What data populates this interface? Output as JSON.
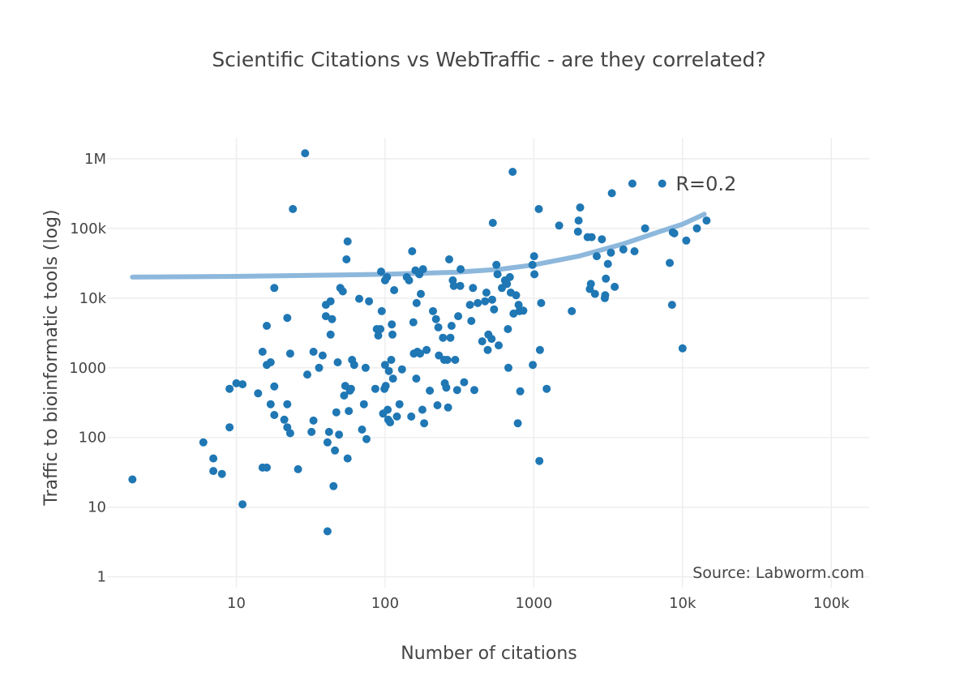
{
  "chart_data": {
    "type": "scatter",
    "title": "Scientific Citations vs WebTraffic - are they correlated?",
    "xlabel": "Number of citations",
    "ylabel": "Traffic to bioinformatic tools (log)",
    "xscale": "log",
    "yscale": "log",
    "xlim": [
      1.35,
      180000
    ],
    "ylim": [
      0.7,
      2000000
    ],
    "grid": true,
    "x_ticks": [
      {
        "value": 10,
        "label": "10"
      },
      {
        "value": 100,
        "label": "100"
      },
      {
        "value": 1000,
        "label": "1000"
      },
      {
        "value": 10000,
        "label": "10k"
      },
      {
        "value": 100000,
        "label": "100k"
      }
    ],
    "y_ticks": [
      {
        "value": 1,
        "label": "1"
      },
      {
        "value": 10,
        "label": "10"
      },
      {
        "value": 100,
        "label": "100"
      },
      {
        "value": 1000,
        "label": "1000"
      },
      {
        "value": 10000,
        "label": "10k"
      },
      {
        "value": 100000,
        "label": "100k"
      },
      {
        "value": 1000000,
        "label": "1M"
      }
    ],
    "colors": {
      "points": "#1f77b4",
      "trend": "#8db8dc"
    },
    "annotation": {
      "text": "R=0.2",
      "x": 9000,
      "y": 350000
    },
    "source_note": "Source: Labworm.com",
    "trend_line": [
      [
        2,
        20000
      ],
      [
        10,
        20500
      ],
      [
        50,
        21500
      ],
      [
        100,
        22000
      ],
      [
        300,
        23500
      ],
      [
        600,
        26000
      ],
      [
        1000,
        30000
      ],
      [
        2000,
        40000
      ],
      [
        4000,
        60000
      ],
      [
        7000,
        90000
      ],
      [
        10000,
        115000
      ],
      [
        14000,
        160000
      ]
    ],
    "points": [
      [
        2,
        25
      ],
      [
        6,
        85
      ],
      [
        7,
        50
      ],
      [
        7,
        33
      ],
      [
        8,
        30
      ],
      [
        9,
        500
      ],
      [
        9,
        140
      ],
      [
        10,
        600
      ],
      [
        11,
        580
      ],
      [
        11,
        11
      ],
      [
        14,
        430
      ],
      [
        15,
        1700
      ],
      [
        15,
        37
      ],
      [
        16,
        37
      ],
      [
        16,
        4000
      ],
      [
        16,
        1100
      ],
      [
        17,
        1200
      ],
      [
        17,
        300
      ],
      [
        18,
        14000
      ],
      [
        18,
        210
      ],
      [
        18,
        540
      ],
      [
        21,
        180
      ],
      [
        22,
        5200
      ],
      [
        22,
        300
      ],
      [
        22,
        140
      ],
      [
        23,
        1600
      ],
      [
        23,
        115
      ],
      [
        24,
        190000
      ],
      [
        26,
        35
      ],
      [
        29,
        1200000
      ],
      [
        30,
        800
      ],
      [
        32,
        120
      ],
      [
        33,
        175
      ],
      [
        33,
        1700
      ],
      [
        36,
        1000
      ],
      [
        38,
        1500
      ],
      [
        40,
        8000
      ],
      [
        40,
        5500
      ],
      [
        41,
        4.5
      ],
      [
        41,
        85
      ],
      [
        42,
        120
      ],
      [
        43,
        9000
      ],
      [
        43,
        3000
      ],
      [
        44,
        5000
      ],
      [
        45,
        20
      ],
      [
        46,
        65
      ],
      [
        47,
        230
      ],
      [
        48,
        1200
      ],
      [
        49,
        110
      ],
      [
        50,
        14000
      ],
      [
        52,
        12500
      ],
      [
        53,
        400
      ],
      [
        54,
        550
      ],
      [
        55,
        36000
      ],
      [
        56,
        65000
      ],
      [
        56,
        50
      ],
      [
        57,
        240
      ],
      [
        58,
        470
      ],
      [
        59,
        500
      ],
      [
        60,
        1300
      ],
      [
        62,
        1100
      ],
      [
        67,
        9800
      ],
      [
        70,
        130
      ],
      [
        72,
        300
      ],
      [
        74,
        1000
      ],
      [
        75,
        95
      ],
      [
        78,
        9000
      ],
      [
        86,
        500
      ],
      [
        88,
        3600
      ],
      [
        90,
        2900
      ],
      [
        93,
        3600
      ],
      [
        94,
        24000
      ],
      [
        95,
        6500
      ],
      [
        97,
        220
      ],
      [
        99,
        500
      ],
      [
        100,
        1100
      ],
      [
        100,
        18000
      ],
      [
        101,
        550
      ],
      [
        103,
        20000
      ],
      [
        104,
        250
      ],
      [
        105,
        180
      ],
      [
        106,
        900
      ],
      [
        108,
        165
      ],
      [
        110,
        1300
      ],
      [
        111,
        4200
      ],
      [
        112,
        3000
      ],
      [
        113,
        700
      ],
      [
        115,
        13000
      ],
      [
        120,
        200
      ],
      [
        125,
        300
      ],
      [
        130,
        950
      ],
      [
        140,
        20000
      ],
      [
        145,
        18000
      ],
      [
        150,
        200
      ],
      [
        152,
        47000
      ],
      [
        155,
        4500
      ],
      [
        156,
        1600
      ],
      [
        160,
        25000
      ],
      [
        162,
        700
      ],
      [
        163,
        8500
      ],
      [
        165,
        1700
      ],
      [
        170,
        22000
      ],
      [
        172,
        1600
      ],
      [
        174,
        11500
      ],
      [
        178,
        250
      ],
      [
        180,
        26000
      ],
      [
        183,
        160
      ],
      [
        190,
        1800
      ],
      [
        200,
        470
      ],
      [
        210,
        6500
      ],
      [
        220,
        5000
      ],
      [
        225,
        290
      ],
      [
        228,
        3800
      ],
      [
        230,
        1500
      ],
      [
        245,
        2700
      ],
      [
        250,
        1300
      ],
      [
        252,
        600
      ],
      [
        258,
        520
      ],
      [
        262,
        1300
      ],
      [
        265,
        270
      ],
      [
        270,
        36000
      ],
      [
        275,
        2700
      ],
      [
        280,
        4000
      ],
      [
        285,
        18000
      ],
      [
        290,
        15000
      ],
      [
        296,
        1300
      ],
      [
        305,
        480
      ],
      [
        310,
        5500
      ],
      [
        320,
        15000
      ],
      [
        322,
        26000
      ],
      [
        340,
        620
      ],
      [
        372,
        8000
      ],
      [
        380,
        4700
      ],
      [
        390,
        14000
      ],
      [
        398,
        480
      ],
      [
        420,
        8500
      ],
      [
        450,
        2400
      ],
      [
        470,
        9000
      ],
      [
        480,
        12000
      ],
      [
        490,
        1800
      ],
      [
        495,
        3000
      ],
      [
        520,
        2600
      ],
      [
        525,
        9500
      ],
      [
        530,
        120000
      ],
      [
        540,
        6900
      ],
      [
        560,
        30000
      ],
      [
        570,
        22000
      ],
      [
        580,
        2100
      ],
      [
        610,
        14000
      ],
      [
        640,
        18000
      ],
      [
        650,
        17000
      ],
      [
        660,
        16000
      ],
      [
        670,
        3600
      ],
      [
        675,
        1000
      ],
      [
        690,
        20000
      ],
      [
        700,
        12000
      ],
      [
        720,
        650000
      ],
      [
        730,
        6000
      ],
      [
        760,
        11000
      ],
      [
        780,
        160
      ],
      [
        790,
        8000
      ],
      [
        800,
        6500
      ],
      [
        810,
        460
      ],
      [
        850,
        6600
      ],
      [
        980,
        30000
      ],
      [
        985,
        1100
      ],
      [
        1005,
        40000
      ],
      [
        1010,
        22000
      ],
      [
        1080,
        190000
      ],
      [
        1090,
        46
      ],
      [
        1100,
        1800
      ],
      [
        1120,
        8500
      ],
      [
        1220,
        500
      ],
      [
        1480,
        110000
      ],
      [
        1800,
        6500
      ],
      [
        1980,
        90000
      ],
      [
        2000,
        130000
      ],
      [
        2050,
        200000
      ],
      [
        2300,
        75000
      ],
      [
        2380,
        13500
      ],
      [
        2420,
        16000
      ],
      [
        2450,
        75000
      ],
      [
        2580,
        11500
      ],
      [
        2650,
        40000
      ],
      [
        2870,
        70000
      ],
      [
        3000,
        10000
      ],
      [
        3020,
        11000
      ],
      [
        3050,
        19000
      ],
      [
        3150,
        31000
      ],
      [
        3300,
        45000
      ],
      [
        3350,
        320000
      ],
      [
        3500,
        14500
      ],
      [
        4000,
        50000
      ],
      [
        4600,
        440000
      ],
      [
        4750,
        47000
      ],
      [
        5600,
        100000
      ],
      [
        7300,
        440000
      ],
      [
        8200,
        32000
      ],
      [
        8500,
        8000
      ],
      [
        8600,
        88000
      ],
      [
        8800,
        85000
      ],
      [
        10000,
        1900
      ],
      [
        10600,
        67000
      ],
      [
        12500,
        100000
      ],
      [
        14500,
        130000
      ]
    ]
  }
}
